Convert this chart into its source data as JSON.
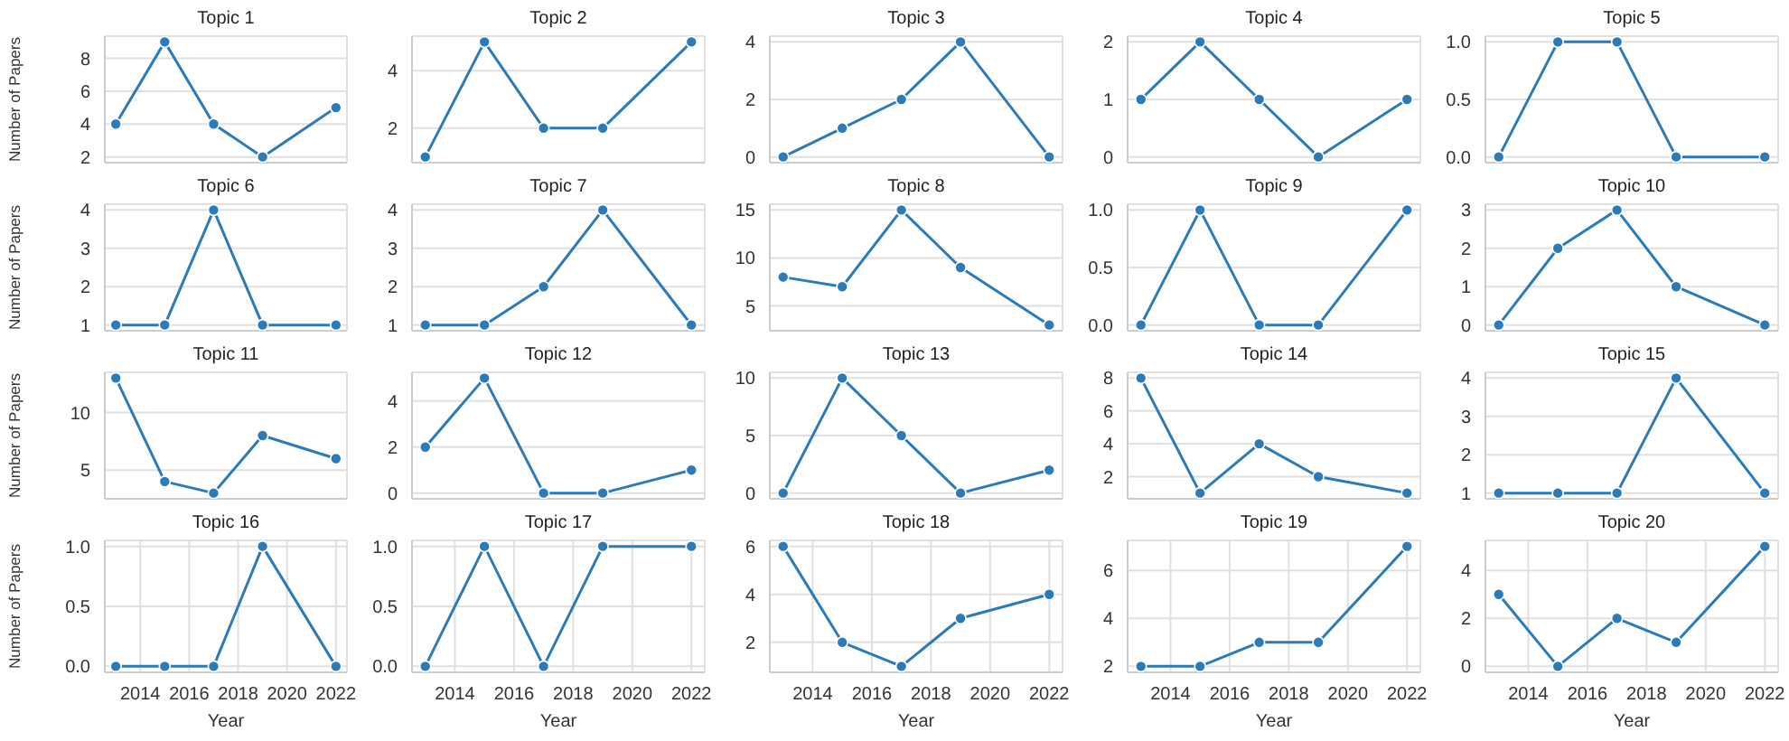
{
  "chart_data": [
    {
      "type": "line",
      "title": "Topic 1",
      "ylabel": "Number of Papers",
      "x": [
        2013,
        2015,
        2017,
        2019,
        2022
      ],
      "values": [
        4,
        9,
        4,
        2,
        5
      ],
      "color": "#2b7bba",
      "xlim": [
        2012.55,
        2022.45
      ],
      "xticks": [
        2014,
        2016,
        2018,
        2020,
        2022
      ],
      "ylim": [
        1.65,
        9.35
      ],
      "yticks": [
        2,
        4,
        6,
        8
      ],
      "grid": true,
      "marker": "circle",
      "tick_labels": "y"
    },
    {
      "type": "line",
      "title": "Topic 2",
      "x": [
        2013,
        2015,
        2017,
        2019,
        2022
      ],
      "values": [
        1,
        5,
        2,
        2,
        5
      ],
      "color": "#2b7bba",
      "xlim": [
        2012.55,
        2022.45
      ],
      "xticks": [
        2014,
        2016,
        2018,
        2020,
        2022
      ],
      "ylim": [
        0.8,
        5.2
      ],
      "yticks": [
        2,
        4
      ],
      "grid": true,
      "marker": "circle",
      "tick_labels": "y"
    },
    {
      "type": "line",
      "title": "Topic 3",
      "x": [
        2013,
        2015,
        2017,
        2019,
        2022
      ],
      "values": [
        0,
        1,
        2,
        4,
        0
      ],
      "color": "#2b7bba",
      "xlim": [
        2012.55,
        2022.45
      ],
      "xticks": [
        2014,
        2016,
        2018,
        2020,
        2022
      ],
      "ylim": [
        -0.2,
        4.2
      ],
      "yticks": [
        0,
        2,
        4
      ],
      "grid": true,
      "marker": "circle",
      "tick_labels": "y"
    },
    {
      "type": "line",
      "title": "Topic 4",
      "x": [
        2013,
        2015,
        2017,
        2019,
        2022
      ],
      "values": [
        1,
        2,
        1,
        0,
        1
      ],
      "color": "#2b7bba",
      "xlim": [
        2012.55,
        2022.45
      ],
      "xticks": [
        2014,
        2016,
        2018,
        2020,
        2022
      ],
      "ylim": [
        -0.1,
        2.1
      ],
      "yticks": [
        0,
        1,
        2
      ],
      "grid": true,
      "marker": "circle",
      "tick_labels": "y"
    },
    {
      "type": "line",
      "title": "Topic 5",
      "x": [
        2013,
        2015,
        2017,
        2019,
        2022
      ],
      "values": [
        0,
        1,
        1,
        0,
        0
      ],
      "color": "#2b7bba",
      "xlim": [
        2012.55,
        2022.45
      ],
      "xticks": [
        2014,
        2016,
        2018,
        2020,
        2022
      ],
      "ylim": [
        -0.05,
        1.05
      ],
      "yticks": [
        {
          "value": 0,
          "label": "0.0"
        },
        {
          "value": 0.5,
          "label": "0.5"
        },
        {
          "value": 1,
          "label": "1.0"
        }
      ],
      "grid": true,
      "marker": "circle",
      "tick_labels": "y"
    },
    {
      "type": "line",
      "title": "Topic 6",
      "ylabel": "Number of Papers",
      "x": [
        2013,
        2015,
        2017,
        2019,
        2022
      ],
      "values": [
        1,
        1,
        4,
        1,
        1
      ],
      "color": "#2b7bba",
      "xlim": [
        2012.55,
        2022.45
      ],
      "xticks": [
        2014,
        2016,
        2018,
        2020,
        2022
      ],
      "ylim": [
        0.85,
        4.15
      ],
      "yticks": [
        1,
        2,
        3,
        4
      ],
      "grid": true,
      "marker": "circle",
      "tick_labels": "y"
    },
    {
      "type": "line",
      "title": "Topic 7",
      "x": [
        2013,
        2015,
        2017,
        2019,
        2022
      ],
      "values": [
        1,
        1,
        2,
        4,
        1
      ],
      "color": "#2b7bba",
      "xlim": [
        2012.55,
        2022.45
      ],
      "xticks": [
        2014,
        2016,
        2018,
        2020,
        2022
      ],
      "ylim": [
        0.85,
        4.15
      ],
      "yticks": [
        1,
        2,
        3,
        4
      ],
      "grid": true,
      "marker": "circle",
      "tick_labels": "y"
    },
    {
      "type": "line",
      "title": "Topic 8",
      "x": [
        2013,
        2015,
        2017,
        2019,
        2022
      ],
      "values": [
        8,
        7,
        15,
        9,
        3
      ],
      "color": "#2b7bba",
      "xlim": [
        2012.55,
        2022.45
      ],
      "xticks": [
        2014,
        2016,
        2018,
        2020,
        2022
      ],
      "ylim": [
        2.4,
        15.6
      ],
      "yticks": [
        5,
        10,
        15
      ],
      "grid": true,
      "marker": "circle",
      "tick_labels": "y"
    },
    {
      "type": "line",
      "title": "Topic 9",
      "x": [
        2013,
        2015,
        2017,
        2019,
        2022
      ],
      "values": [
        0,
        1,
        0,
        0,
        1
      ],
      "color": "#2b7bba",
      "xlim": [
        2012.55,
        2022.45
      ],
      "xticks": [
        2014,
        2016,
        2018,
        2020,
        2022
      ],
      "ylim": [
        -0.05,
        1.05
      ],
      "yticks": [
        {
          "value": 0,
          "label": "0.0"
        },
        {
          "value": 0.5,
          "label": "0.5"
        },
        {
          "value": 1,
          "label": "1.0"
        }
      ],
      "grid": true,
      "marker": "circle",
      "tick_labels": "y"
    },
    {
      "type": "line",
      "title": "Topic 10",
      "x": [
        2013,
        2015,
        2017,
        2019,
        2022
      ],
      "values": [
        0,
        2,
        3,
        1,
        0
      ],
      "color": "#2b7bba",
      "xlim": [
        2012.55,
        2022.45
      ],
      "xticks": [
        2014,
        2016,
        2018,
        2020,
        2022
      ],
      "ylim": [
        -0.15,
        3.15
      ],
      "yticks": [
        0,
        1,
        2,
        3
      ],
      "grid": true,
      "marker": "circle",
      "tick_labels": "y"
    },
    {
      "type": "line",
      "title": "Topic 11",
      "ylabel": "Number of Papers",
      "x": [
        2013,
        2015,
        2017,
        2019,
        2022
      ],
      "values": [
        13,
        4,
        3,
        8,
        6
      ],
      "color": "#2b7bba",
      "xlim": [
        2012.55,
        2022.45
      ],
      "xticks": [
        2014,
        2016,
        2018,
        2020,
        2022
      ],
      "ylim": [
        2.5,
        13.5
      ],
      "yticks": [
        5,
        10
      ],
      "grid": true,
      "marker": "circle",
      "tick_labels": "y"
    },
    {
      "type": "line",
      "title": "Topic 12",
      "x": [
        2013,
        2015,
        2017,
        2019,
        2022
      ],
      "values": [
        2,
        5,
        0,
        0,
        1
      ],
      "color": "#2b7bba",
      "xlim": [
        2012.55,
        2022.45
      ],
      "xticks": [
        2014,
        2016,
        2018,
        2020,
        2022
      ],
      "ylim": [
        -0.25,
        5.25
      ],
      "yticks": [
        0,
        2,
        4
      ],
      "grid": true,
      "marker": "circle",
      "tick_labels": "y"
    },
    {
      "type": "line",
      "title": "Topic 13",
      "x": [
        2013,
        2015,
        2017,
        2019,
        2022
      ],
      "values": [
        0,
        10,
        5,
        0,
        2
      ],
      "color": "#2b7bba",
      "xlim": [
        2012.55,
        2022.45
      ],
      "xticks": [
        2014,
        2016,
        2018,
        2020,
        2022
      ],
      "ylim": [
        -0.5,
        10.5
      ],
      "yticks": [
        0,
        5,
        10
      ],
      "grid": true,
      "marker": "circle",
      "tick_labels": "y"
    },
    {
      "type": "line",
      "title": "Topic 14",
      "x": [
        2013,
        2015,
        2017,
        2019,
        2022
      ],
      "values": [
        8,
        1,
        4,
        2,
        1
      ],
      "color": "#2b7bba",
      "xlim": [
        2012.55,
        2022.45
      ],
      "xticks": [
        2014,
        2016,
        2018,
        2020,
        2022
      ],
      "ylim": [
        0.65,
        8.35
      ],
      "yticks": [
        2,
        4,
        6,
        8
      ],
      "grid": true,
      "marker": "circle",
      "tick_labels": "y"
    },
    {
      "type": "line",
      "title": "Topic 15",
      "x": [
        2013,
        2015,
        2017,
        2019,
        2022
      ],
      "values": [
        1,
        1,
        1,
        4,
        1
      ],
      "color": "#2b7bba",
      "xlim": [
        2012.55,
        2022.45
      ],
      "xticks": [
        2014,
        2016,
        2018,
        2020,
        2022
      ],
      "ylim": [
        0.85,
        4.15
      ],
      "yticks": [
        1,
        2,
        3,
        4
      ],
      "grid": true,
      "marker": "circle",
      "tick_labels": "y"
    },
    {
      "type": "line",
      "title": "Topic 16",
      "xlabel": "Year",
      "ylabel": "Number of Papers",
      "x": [
        2013,
        2015,
        2017,
        2019,
        2022
      ],
      "values": [
        0,
        0,
        0,
        1,
        0
      ],
      "color": "#2b7bba",
      "xlim": [
        2012.55,
        2022.45
      ],
      "xticks": [
        2014,
        2016,
        2018,
        2020,
        2022
      ],
      "ylim": [
        -0.05,
        1.05
      ],
      "yticks": [
        {
          "value": 0,
          "label": "0.0"
        },
        {
          "value": 0.5,
          "label": "0.5"
        },
        {
          "value": 1,
          "label": "1.0"
        }
      ],
      "grid": true,
      "marker": "circle"
    },
    {
      "type": "line",
      "title": "Topic 17",
      "xlabel": "Year",
      "x": [
        2013,
        2015,
        2017,
        2019,
        2022
      ],
      "values": [
        0,
        1,
        0,
        1,
        1
      ],
      "color": "#2b7bba",
      "xlim": [
        2012.55,
        2022.45
      ],
      "xticks": [
        2014,
        2016,
        2018,
        2020,
        2022
      ],
      "ylim": [
        -0.05,
        1.05
      ],
      "yticks": [
        {
          "value": 0,
          "label": "0.0"
        },
        {
          "value": 0.5,
          "label": "0.5"
        },
        {
          "value": 1,
          "label": "1.0"
        }
      ],
      "grid": true,
      "marker": "circle"
    },
    {
      "type": "line",
      "title": "Topic 18",
      "xlabel": "Year",
      "x": [
        2013,
        2015,
        2017,
        2019,
        2022
      ],
      "values": [
        6,
        2,
        1,
        3,
        4
      ],
      "color": "#2b7bba",
      "xlim": [
        2012.55,
        2022.45
      ],
      "xticks": [
        2014,
        2016,
        2018,
        2020,
        2022
      ],
      "ylim": [
        0.75,
        6.25
      ],
      "yticks": [
        2,
        4,
        6
      ],
      "grid": true,
      "marker": "circle"
    },
    {
      "type": "line",
      "title": "Topic 19",
      "xlabel": "Year",
      "x": [
        2013,
        2015,
        2017,
        2019,
        2022
      ],
      "values": [
        2,
        2,
        3,
        3,
        7
      ],
      "color": "#2b7bba",
      "xlim": [
        2012.55,
        2022.45
      ],
      "xticks": [
        2014,
        2016,
        2018,
        2020,
        2022
      ],
      "ylim": [
        1.75,
        7.25
      ],
      "yticks": [
        2,
        4,
        6
      ],
      "grid": true,
      "marker": "circle"
    },
    {
      "type": "line",
      "title": "Topic 20",
      "xlabel": "Year",
      "x": [
        2013,
        2015,
        2017,
        2019,
        2022
      ],
      "values": [
        3,
        0,
        2,
        1,
        5
      ],
      "color": "#2b7bba",
      "xlim": [
        2012.55,
        2022.45
      ],
      "xticks": [
        2014,
        2016,
        2018,
        2020,
        2022
      ],
      "ylim": [
        -0.25,
        5.25
      ],
      "yticks": [
        0,
        2,
        4
      ],
      "grid": true,
      "marker": "circle"
    }
  ]
}
